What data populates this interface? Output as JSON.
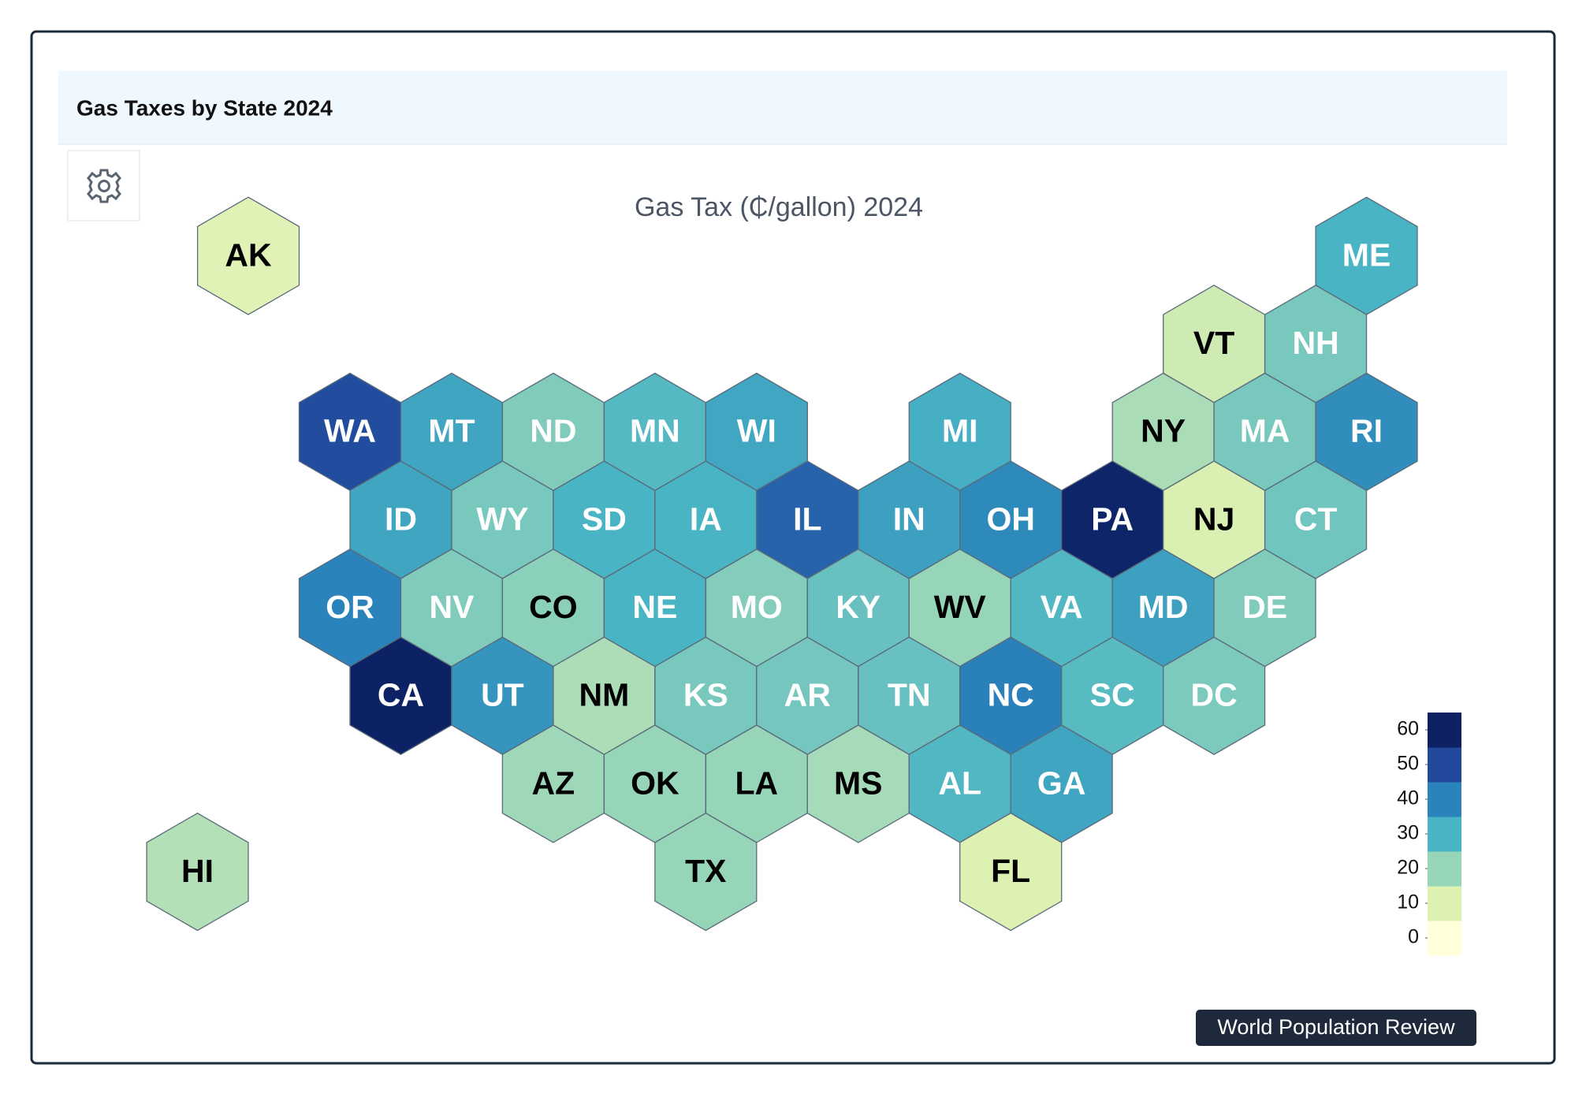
{
  "chart_data": {
    "type": "hexmap",
    "title": "Gas Taxes by State 2024",
    "chart_title": "Gas Tax (₵/gallon) 2024",
    "source": "World Population Review",
    "states": [
      "AK",
      "ME",
      "VT",
      "NH",
      "WA",
      "MT",
      "ND",
      "MN",
      "WI",
      "MI",
      "NY",
      "MA",
      "RI",
      "ID",
      "WY",
      "SD",
      "IA",
      "IL",
      "IN",
      "OH",
      "PA",
      "NJ",
      "CT",
      "OR",
      "NV",
      "CO",
      "NE",
      "MO",
      "KY",
      "WV",
      "VA",
      "MD",
      "DE",
      "CA",
      "UT",
      "NM",
      "KS",
      "AR",
      "TN",
      "NC",
      "SC",
      "DC",
      "AZ",
      "OK",
      "LA",
      "MS",
      "AL",
      "GA",
      "HI",
      "TX",
      "FL"
    ],
    "values": [
      8.95,
      30,
      12.1,
      23.8,
      49.4,
      33,
      23,
      28.6,
      32.9,
      31,
      17.35,
      24,
      38,
      33,
      24,
      30,
      30,
      45.4,
      34,
      38.5,
      58.7,
      10.5,
      25,
      40,
      23,
      21.5,
      30,
      22.5,
      26,
      20,
      29,
      34,
      23,
      59.6,
      36.4,
      17,
      24,
      24.5,
      26,
      40.3,
      28,
      23.5,
      19,
      20,
      20,
      18,
      29,
      33,
      16,
      20,
      9.7
    ],
    "colorscale": [
      "#ffffd9",
      "#dcf1b2",
      "#97d5b9",
      "#49b4c4",
      "#2a83ba",
      "#22489c",
      "#0c2062"
    ],
    "colorbar_ticks": [
      0,
      10,
      20,
      30,
      40,
      50,
      60
    ]
  }
}
